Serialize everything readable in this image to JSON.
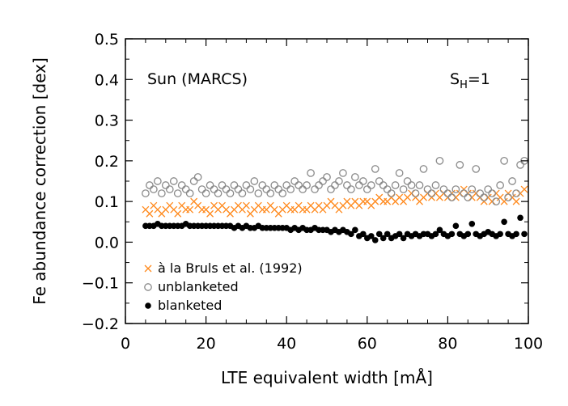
{
  "chart_data": {
    "type": "scatter",
    "xlabel": "LTE equivalent width [mÅ]",
    "ylabel": "Fe abundance correction [dex]",
    "xlim": [
      0,
      100
    ],
    "ylim": [
      -0.2,
      0.5
    ],
    "xticks": [
      0,
      20,
      40,
      60,
      80,
      100
    ],
    "yticks": [
      -0.2,
      -0.1,
      0.0,
      0.1,
      0.2,
      0.3,
      0.4,
      0.5
    ],
    "ytick_labels": [
      "−0.2",
      "−0.1",
      "0.0",
      "0.1",
      "0.2",
      "0.3",
      "0.4",
      "0.5"
    ],
    "xtick_labels": [
      "0",
      "20",
      "40",
      "60",
      "80",
      "100"
    ],
    "annotation_left": "Sun (MARCS)",
    "annotation_right_main": "S",
    "annotation_right_sub": "H",
    "annotation_right_tail": "=1",
    "legend_position": "bottom-left",
    "grid": false,
    "series": [
      {
        "name": "à la Bruls et al. (1992)",
        "marker": "x",
        "color": "#ff8a1e",
        "points": [
          [
            5,
            0.08
          ],
          [
            6,
            0.07
          ],
          [
            7,
            0.09
          ],
          [
            8,
            0.08
          ],
          [
            9,
            0.07
          ],
          [
            10,
            0.08
          ],
          [
            11,
            0.09
          ],
          [
            12,
            0.08
          ],
          [
            13,
            0.07
          ],
          [
            14,
            0.09
          ],
          [
            15,
            0.08
          ],
          [
            16,
            0.08
          ],
          [
            17,
            0.1
          ],
          [
            18,
            0.09
          ],
          [
            19,
            0.08
          ],
          [
            20,
            0.08
          ],
          [
            21,
            0.07
          ],
          [
            22,
            0.09
          ],
          [
            23,
            0.08
          ],
          [
            24,
            0.09
          ],
          [
            25,
            0.08
          ],
          [
            26,
            0.07
          ],
          [
            27,
            0.08
          ],
          [
            28,
            0.09
          ],
          [
            29,
            0.08
          ],
          [
            30,
            0.09
          ],
          [
            31,
            0.07
          ],
          [
            32,
            0.08
          ],
          [
            33,
            0.09
          ],
          [
            34,
            0.08
          ],
          [
            35,
            0.08
          ],
          [
            36,
            0.09
          ],
          [
            37,
            0.08
          ],
          [
            38,
            0.07
          ],
          [
            39,
            0.08
          ],
          [
            40,
            0.09
          ],
          [
            41,
            0.08
          ],
          [
            42,
            0.08
          ],
          [
            43,
            0.09
          ],
          [
            44,
            0.08
          ],
          [
            45,
            0.08
          ],
          [
            46,
            0.09
          ],
          [
            47,
            0.08
          ],
          [
            48,
            0.09
          ],
          [
            49,
            0.08
          ],
          [
            50,
            0.09
          ],
          [
            51,
            0.1
          ],
          [
            52,
            0.09
          ],
          [
            53,
            0.08
          ],
          [
            54,
            0.09
          ],
          [
            55,
            0.1
          ],
          [
            56,
            0.09
          ],
          [
            57,
            0.1
          ],
          [
            58,
            0.09
          ],
          [
            59,
            0.1
          ],
          [
            60,
            0.1
          ],
          [
            61,
            0.09
          ],
          [
            62,
            0.1
          ],
          [
            63,
            0.11
          ],
          [
            64,
            0.1
          ],
          [
            65,
            0.1
          ],
          [
            66,
            0.11
          ],
          [
            67,
            0.1
          ],
          [
            68,
            0.11
          ],
          [
            69,
            0.1
          ],
          [
            70,
            0.11
          ],
          [
            71,
            0.12
          ],
          [
            72,
            0.11
          ],
          [
            73,
            0.1
          ],
          [
            74,
            0.11
          ],
          [
            75,
            0.12
          ],
          [
            76,
            0.11
          ],
          [
            77,
            0.12
          ],
          [
            78,
            0.11
          ],
          [
            79,
            0.12
          ],
          [
            80,
            0.11
          ],
          [
            81,
            0.12
          ],
          [
            82,
            0.11
          ],
          [
            83,
            0.12
          ],
          [
            84,
            0.13
          ],
          [
            85,
            0.12
          ],
          [
            86,
            0.11
          ],
          [
            87,
            0.12
          ],
          [
            88,
            0.11
          ],
          [
            89,
            0.1
          ],
          [
            90,
            0.11
          ],
          [
            91,
            0.1
          ],
          [
            92,
            0.12
          ],
          [
            93,
            0.11
          ],
          [
            94,
            0.1
          ],
          [
            95,
            0.12
          ],
          [
            96,
            0.11
          ],
          [
            97,
            0.1
          ],
          [
            98,
            0.12
          ],
          [
            99,
            0.13
          ]
        ]
      },
      {
        "name": "unblanketed",
        "marker": "circle-open",
        "color": "#8a8a8a",
        "points": [
          [
            5,
            0.12
          ],
          [
            6,
            0.14
          ],
          [
            7,
            0.13
          ],
          [
            8,
            0.15
          ],
          [
            9,
            0.12
          ],
          [
            10,
            0.14
          ],
          [
            11,
            0.13
          ],
          [
            12,
            0.15
          ],
          [
            13,
            0.12
          ],
          [
            14,
            0.14
          ],
          [
            15,
            0.13
          ],
          [
            16,
            0.12
          ],
          [
            17,
            0.15
          ],
          [
            18,
            0.16
          ],
          [
            19,
            0.13
          ],
          [
            20,
            0.12
          ],
          [
            21,
            0.14
          ],
          [
            22,
            0.13
          ],
          [
            23,
            0.12
          ],
          [
            24,
            0.14
          ],
          [
            25,
            0.13
          ],
          [
            26,
            0.12
          ],
          [
            27,
            0.14
          ],
          [
            28,
            0.13
          ],
          [
            29,
            0.12
          ],
          [
            30,
            0.14
          ],
          [
            31,
            0.13
          ],
          [
            32,
            0.15
          ],
          [
            33,
            0.12
          ],
          [
            34,
            0.14
          ],
          [
            35,
            0.13
          ],
          [
            36,
            0.12
          ],
          [
            37,
            0.14
          ],
          [
            38,
            0.13
          ],
          [
            39,
            0.12
          ],
          [
            40,
            0.14
          ],
          [
            41,
            0.13
          ],
          [
            42,
            0.15
          ],
          [
            43,
            0.14
          ],
          [
            44,
            0.13
          ],
          [
            45,
            0.14
          ],
          [
            46,
            0.17
          ],
          [
            47,
            0.13
          ],
          [
            48,
            0.14
          ],
          [
            49,
            0.15
          ],
          [
            50,
            0.16
          ],
          [
            51,
            0.13
          ],
          [
            52,
            0.14
          ],
          [
            53,
            0.15
          ],
          [
            54,
            0.17
          ],
          [
            55,
            0.14
          ],
          [
            56,
            0.13
          ],
          [
            57,
            0.16
          ],
          [
            58,
            0.14
          ],
          [
            59,
            0.15
          ],
          [
            60,
            0.13
          ],
          [
            61,
            0.14
          ],
          [
            62,
            0.18
          ],
          [
            63,
            0.15
          ],
          [
            64,
            0.14
          ],
          [
            65,
            0.13
          ],
          [
            66,
            0.12
          ],
          [
            67,
            0.14
          ],
          [
            68,
            0.17
          ],
          [
            69,
            0.13
          ],
          [
            70,
            0.15
          ],
          [
            71,
            0.14
          ],
          [
            72,
            0.12
          ],
          [
            73,
            0.14
          ],
          [
            74,
            0.18
          ],
          [
            75,
            0.13
          ],
          [
            76,
            0.12
          ],
          [
            77,
            0.14
          ],
          [
            78,
            0.2
          ],
          [
            79,
            0.13
          ],
          [
            80,
            0.12
          ],
          [
            81,
            0.11
          ],
          [
            82,
            0.13
          ],
          [
            83,
            0.19
          ],
          [
            84,
            0.12
          ],
          [
            85,
            0.11
          ],
          [
            86,
            0.13
          ],
          [
            87,
            0.18
          ],
          [
            88,
            0.12
          ],
          [
            89,
            0.11
          ],
          [
            90,
            0.13
          ],
          [
            91,
            0.12
          ],
          [
            92,
            0.1
          ],
          [
            93,
            0.14
          ],
          [
            94,
            0.2
          ],
          [
            95,
            0.11
          ],
          [
            96,
            0.15
          ],
          [
            97,
            0.12
          ],
          [
            98,
            0.19
          ],
          [
            99,
            0.2
          ]
        ]
      },
      {
        "name": "blanketed",
        "marker": "circle-filled",
        "color": "#000000",
        "points": [
          [
            5,
            0.04
          ],
          [
            6,
            0.04
          ],
          [
            7,
            0.04
          ],
          [
            8,
            0.045
          ],
          [
            9,
            0.04
          ],
          [
            10,
            0.04
          ],
          [
            11,
            0.04
          ],
          [
            12,
            0.04
          ],
          [
            13,
            0.04
          ],
          [
            14,
            0.04
          ],
          [
            15,
            0.045
          ],
          [
            16,
            0.04
          ],
          [
            17,
            0.04
          ],
          [
            18,
            0.04
          ],
          [
            19,
            0.04
          ],
          [
            20,
            0.04
          ],
          [
            21,
            0.04
          ],
          [
            22,
            0.04
          ],
          [
            23,
            0.04
          ],
          [
            24,
            0.04
          ],
          [
            25,
            0.04
          ],
          [
            26,
            0.04
          ],
          [
            27,
            0.035
          ],
          [
            28,
            0.04
          ],
          [
            29,
            0.035
          ],
          [
            30,
            0.04
          ],
          [
            31,
            0.035
          ],
          [
            32,
            0.035
          ],
          [
            33,
            0.04
          ],
          [
            34,
            0.035
          ],
          [
            35,
            0.035
          ],
          [
            36,
            0.035
          ],
          [
            37,
            0.035
          ],
          [
            38,
            0.035
          ],
          [
            39,
            0.035
          ],
          [
            40,
            0.035
          ],
          [
            41,
            0.03
          ],
          [
            42,
            0.035
          ],
          [
            43,
            0.03
          ],
          [
            44,
            0.035
          ],
          [
            45,
            0.03
          ],
          [
            46,
            0.03
          ],
          [
            47,
            0.035
          ],
          [
            48,
            0.03
          ],
          [
            49,
            0.03
          ],
          [
            50,
            0.03
          ],
          [
            51,
            0.025
          ],
          [
            52,
            0.03
          ],
          [
            53,
            0.025
          ],
          [
            54,
            0.03
          ],
          [
            55,
            0.025
          ],
          [
            56,
            0.02
          ],
          [
            57,
            0.03
          ],
          [
            58,
            0.015
          ],
          [
            59,
            0.02
          ],
          [
            60,
            0.01
          ],
          [
            61,
            0.015
          ],
          [
            62,
            0.005
          ],
          [
            63,
            0.02
          ],
          [
            64,
            0.01
          ],
          [
            65,
            0.02
          ],
          [
            66,
            0.01
          ],
          [
            67,
            0.015
          ],
          [
            68,
            0.02
          ],
          [
            69,
            0.01
          ],
          [
            70,
            0.02
          ],
          [
            71,
            0.015
          ],
          [
            72,
            0.02
          ],
          [
            73,
            0.015
          ],
          [
            74,
            0.02
          ],
          [
            75,
            0.02
          ],
          [
            76,
            0.015
          ],
          [
            77,
            0.02
          ],
          [
            78,
            0.03
          ],
          [
            79,
            0.02
          ],
          [
            80,
            0.015
          ],
          [
            81,
            0.02
          ],
          [
            82,
            0.04
          ],
          [
            83,
            0.02
          ],
          [
            84,
            0.015
          ],
          [
            85,
            0.02
          ],
          [
            86,
            0.045
          ],
          [
            87,
            0.02
          ],
          [
            88,
            0.015
          ],
          [
            89,
            0.02
          ],
          [
            90,
            0.025
          ],
          [
            91,
            0.02
          ],
          [
            92,
            0.015
          ],
          [
            93,
            0.02
          ],
          [
            94,
            0.05
          ],
          [
            95,
            0.02
          ],
          [
            96,
            0.015
          ],
          [
            97,
            0.02
          ],
          [
            98,
            0.06
          ],
          [
            99,
            0.02
          ]
        ]
      }
    ]
  }
}
